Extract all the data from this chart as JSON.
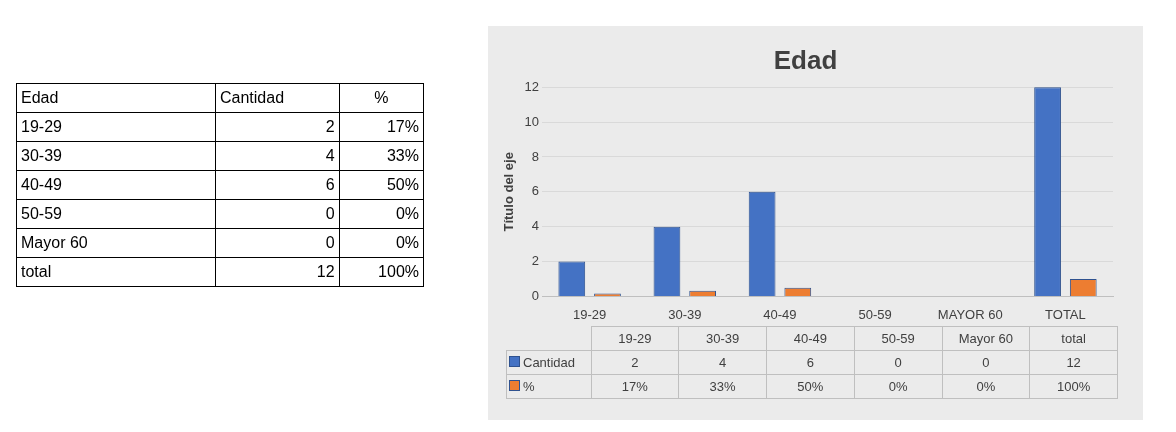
{
  "chart_data": [
    {
      "type": "other",
      "xlabel": "Edad",
      "data_labels": true,
      "categories": [
        "19-29",
        "30-39",
        "40-49",
        "50-59",
        "Mayor 60",
        "total"
      ],
      "series": [
        {
          "name": "Cantidad",
          "values": [
            2,
            4,
            6,
            0,
            0,
            12
          ]
        },
        {
          "name": "%",
          "values": [
            17,
            33,
            50,
            0,
            0,
            100
          ],
          "value_labels": [
            "17%",
            "33%",
            "50%",
            "0%",
            "0%",
            "100%"
          ]
        }
      ]
    },
    {
      "type": "bar",
      "title": "Edad",
      "ylabel": "Título del eje",
      "categories": [
        "19-29",
        "30-39",
        "40-49",
        "50-59",
        "MAYOR 60",
        "TOTAL"
      ],
      "series": [
        {
          "name": "Cantidad",
          "color": "#4472c4",
          "values": [
            2,
            4,
            6,
            0,
            0,
            12
          ]
        },
        {
          "name": "%",
          "color": "#ed7d31",
          "values": [
            0.17,
            0.33,
            0.5,
            0,
            0,
            1
          ],
          "value_labels": [
            "17%",
            "33%",
            "50%",
            "0%",
            "0%",
            "100%"
          ]
        }
      ],
      "ylim": [
        0,
        12
      ],
      "yticks": [
        0,
        2,
        4,
        6,
        8,
        10,
        12
      ],
      "grid": "y",
      "legend": "bottom",
      "data_labels": true
    }
  ]
}
